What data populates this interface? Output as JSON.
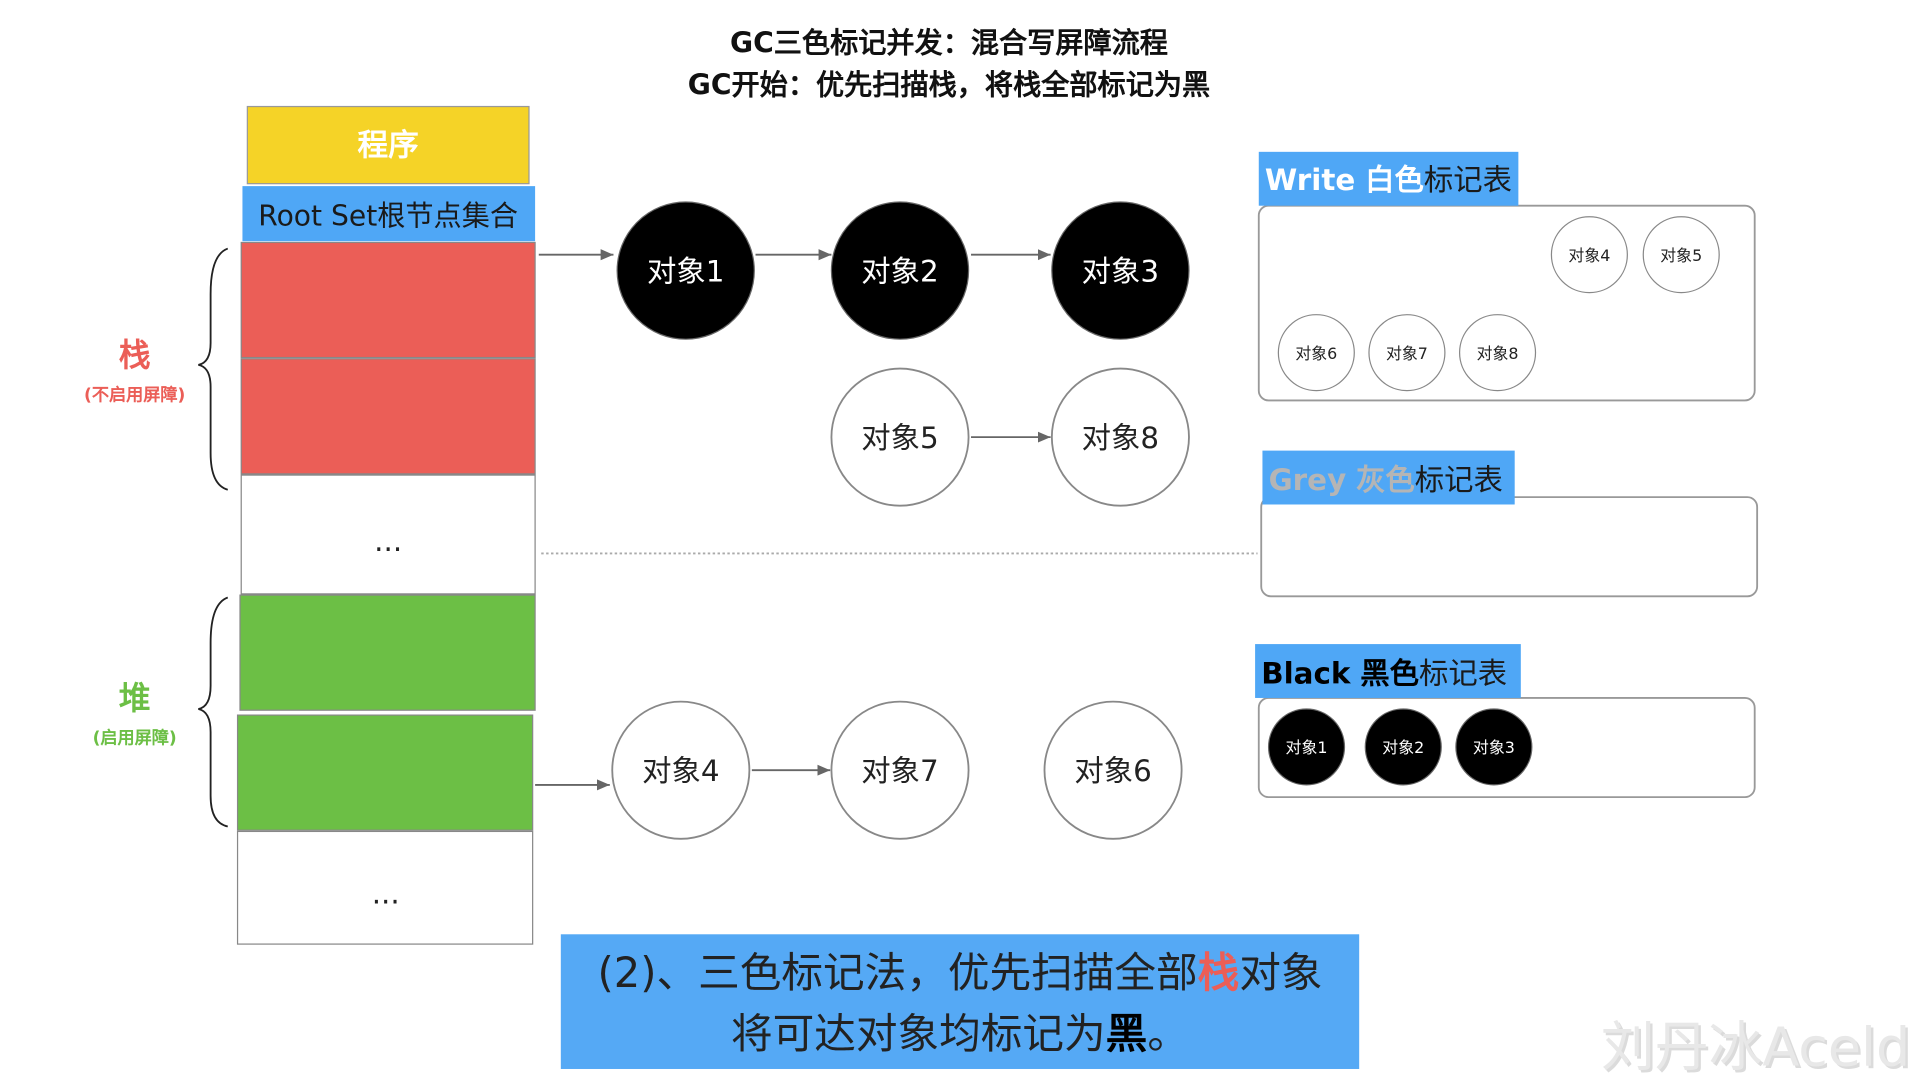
{
  "title": {
    "line1": "GC三色标记并发：混合写屏障流程",
    "line2": "GC开始：优先扫描栈，将栈全部标记为黑"
  },
  "program": {
    "label": "程序"
  },
  "root_set": {
    "label": "Root Set根节点集合",
    "ellipsis_stack": "...",
    "ellipsis_heap": "..."
  },
  "stack_label": {
    "title": "栈",
    "note": "(不启用屏障)"
  },
  "heap_label": {
    "title": "堆",
    "note": "(启用屏障)"
  },
  "objects": {
    "o1": "对象1",
    "o2": "对象2",
    "o3": "对象3",
    "o4": "对象4",
    "o5": "对象5",
    "o6": "对象6",
    "o7": "对象7",
    "o8": "对象8"
  },
  "tables": {
    "white": {
      "title_en": "Write",
      "title_color": "白色",
      "title_rest": "标记表",
      "items": [
        "对象4",
        "对象5",
        "对象6",
        "对象7",
        "对象8"
      ]
    },
    "grey": {
      "title_en": "Grey",
      "title_color": "灰色",
      "title_rest": "标记表",
      "items": []
    },
    "black": {
      "title_en": "Black",
      "title_color": "黑色",
      "title_rest": "标记表",
      "items": [
        "对象1",
        "对象2",
        "对象3"
      ]
    }
  },
  "caption": {
    "line1_a": "(2)、三色标记法，优先扫描全部",
    "line1_highlight": "栈",
    "line1_b": "对象",
    "line2_a": "将可达对象均标记为",
    "line2_highlight": "黑",
    "line2_b": "。"
  },
  "watermark": "刘丹冰Aceld",
  "colors": {
    "yellow": "#F5D327",
    "blue": "#4FA7F6",
    "red": "#EB5E57",
    "green": "#6CBF45",
    "grey_text": "#B5B5B5"
  }
}
